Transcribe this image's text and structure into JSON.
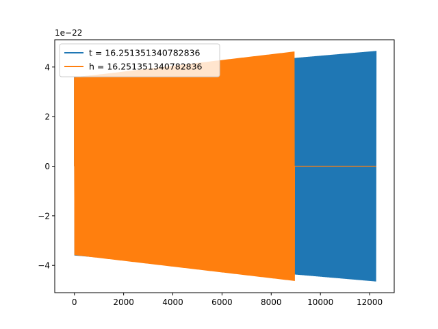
{
  "chart_data": {
    "type": "line",
    "title": "",
    "xlabel": "",
    "ylabel": "",
    "y_offset_text": "1e−22",
    "xlim": [
      -800,
      13000
    ],
    "ylim": [
      -5.1,
      5.1
    ],
    "x_ticks": [
      0,
      2000,
      4000,
      6000,
      8000,
      10000,
      12000
    ],
    "x_tick_labels": [
      "0",
      "2000",
      "4000",
      "6000",
      "8000",
      "10000",
      "12000"
    ],
    "y_ticks": [
      -4,
      -2,
      0,
      2,
      4
    ],
    "y_tick_labels": [
      "−4",
      "−2",
      "0",
      "2",
      "4"
    ],
    "grid": false,
    "legend_position": "top-left",
    "series": [
      {
        "name": "t = 16.251351340782836",
        "color": "#1f77b4",
        "x_range": [
          0,
          12270
        ],
        "amplitude_start": 3.6,
        "amplitude_end": 4.65,
        "note_shape": "dense oscillation with growing envelope"
      },
      {
        "name": "h = 16.251351340782836",
        "color": "#ff7f0e",
        "x_range": [
          0,
          8950
        ],
        "amplitude_start": 3.6,
        "amplitude_end": 4.65,
        "flat_after": 8950,
        "flat_until": 12270,
        "flat_value": 0
      }
    ]
  }
}
